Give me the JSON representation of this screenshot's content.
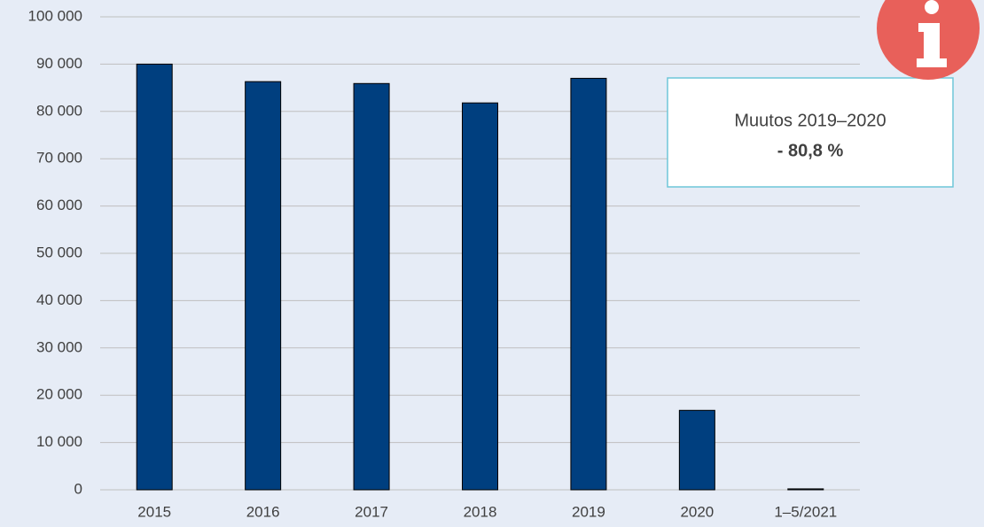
{
  "chart_data": {
    "type": "bar",
    "categories": [
      "2015",
      "2016",
      "2017",
      "2018",
      "2019",
      "2020",
      "1–5/2021"
    ],
    "values": [
      90000,
      86300,
      85900,
      81800,
      87000,
      16800,
      200
    ],
    "color": "#003f7f",
    "ylim": [
      0,
      100000
    ],
    "yticks": [
      0,
      {
        "value": 10000,
        "label": "10 000"
      },
      {
        "value": 20000,
        "label": "20 000"
      },
      {
        "value": 30000,
        "label": "30 000"
      },
      {
        "value": 40000,
        "label": "40 000"
      },
      {
        "value": 50000,
        "label": "50 000"
      },
      {
        "value": 60000,
        "label": "60 000"
      },
      {
        "value": 70000,
        "label": "70 000"
      },
      {
        "value": 80000,
        "label": "80 000"
      },
      {
        "value": 90000,
        "label": "90 000"
      },
      {
        "value": 100000,
        "label": "100 000"
      }
    ],
    "grid": true,
    "annotation": [
      "Muutos 2019–2020",
      "- 80,8 %"
    ]
  }
}
